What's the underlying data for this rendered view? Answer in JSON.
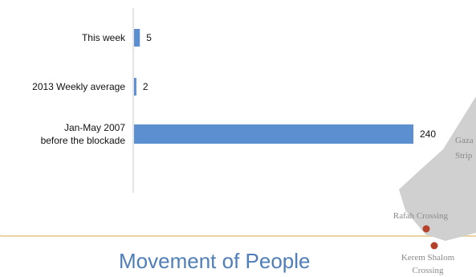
{
  "chart_data": {
    "type": "bar",
    "orientation": "horizontal",
    "categories": [
      [
        "This week"
      ],
      [
        "2013 Weekly average"
      ],
      [
        "Jan-May 2007",
        "before the blockade"
      ]
    ],
    "values": [
      5,
      2,
      240
    ],
    "bar_color": "#5b8fcf",
    "xlim": [
      0,
      300
    ],
    "grid": false,
    "legend": "none"
  },
  "section_title": "Movement of People",
  "map": {
    "fill_color": "#d0d0d0",
    "marker_color": "#b5412b",
    "region_label": [
      "Gaza",
      "Strip"
    ],
    "crossings": [
      {
        "label": [
          "Rafah Crossing"
        ]
      },
      {
        "label": [
          "Kerem Shalom",
          "Crossing"
        ]
      }
    ]
  },
  "colors": {
    "frame": "#e8d3a4",
    "title": "#4f7eb8"
  }
}
